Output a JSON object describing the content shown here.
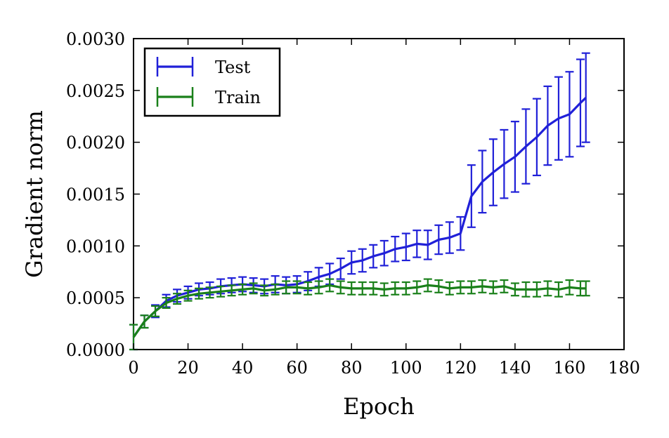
{
  "chart_data": {
    "type": "line",
    "xlabel": "Epoch",
    "ylabel": "Gradient norm",
    "xlim": [
      0,
      180
    ],
    "ylim": [
      0,
      0.003
    ],
    "xticks": [
      0,
      20,
      40,
      60,
      80,
      100,
      120,
      140,
      160,
      180
    ],
    "xtick_labels": [
      "0",
      "20",
      "40",
      "60",
      "80",
      "100",
      "120",
      "140",
      "160",
      "180"
    ],
    "yticks": [
      0,
      0.0005,
      0.001,
      0.0015,
      0.002,
      0.0025,
      0.003
    ],
    "ytick_labels": [
      "0.0000",
      "0.0005",
      "0.0010",
      "0.0015",
      "0.0020",
      "0.0025",
      "0.0030"
    ],
    "grid": false,
    "legend_position": "top-left",
    "x": [
      0,
      4,
      8,
      12,
      16,
      20,
      24,
      28,
      32,
      36,
      40,
      44,
      48,
      52,
      56,
      60,
      64,
      68,
      72,
      76,
      80,
      84,
      88,
      92,
      96,
      100,
      104,
      108,
      112,
      116,
      120,
      124,
      128,
      132,
      136,
      140,
      144,
      148,
      152,
      156,
      160,
      164,
      166
    ],
    "series": [
      {
        "name": "Test",
        "color": "#2020d8",
        "values": [
          0.00012,
          0.00027,
          0.00037,
          0.00047,
          0.00052,
          0.00055,
          0.00058,
          0.00059,
          0.00061,
          0.00062,
          0.00063,
          0.00062,
          0.00061,
          0.00063,
          0.00062,
          0.00063,
          0.00066,
          0.0007,
          0.00073,
          0.00078,
          0.00084,
          0.00086,
          0.0009,
          0.00093,
          0.00097,
          0.00099,
          0.00102,
          0.00101,
          0.00106,
          0.00108,
          0.00112,
          0.00148,
          0.00162,
          0.00171,
          0.00179,
          0.00186,
          0.00196,
          0.00205,
          0.00216,
          0.00223,
          0.00227,
          0.00238,
          0.00243
        ],
        "errors": [
          0.00012,
          6e-05,
          6e-05,
          6e-05,
          6e-05,
          6e-05,
          6e-05,
          6e-05,
          7e-05,
          7e-05,
          7e-05,
          7e-05,
          7e-05,
          8e-05,
          8e-05,
          8e-05,
          9e-05,
          9e-05,
          0.0001,
          0.0001,
          0.00011,
          0.00011,
          0.00011,
          0.00012,
          0.00012,
          0.00013,
          0.00013,
          0.00014,
          0.00014,
          0.00015,
          0.00016,
          0.0003,
          0.0003,
          0.00032,
          0.00033,
          0.00034,
          0.00036,
          0.00037,
          0.00038,
          0.0004,
          0.00041,
          0.00042,
          0.00043
        ]
      },
      {
        "name": "Train",
        "color": "#1a801a",
        "values": [
          0.00012,
          0.00027,
          0.00037,
          0.00045,
          0.00049,
          0.00052,
          0.00054,
          0.00055,
          0.00056,
          0.00057,
          0.00058,
          0.00059,
          0.00057,
          0.00058,
          0.0006,
          0.0006,
          0.00059,
          0.0006,
          0.00062,
          0.0006,
          0.00059,
          0.00059,
          0.00059,
          0.00058,
          0.00059,
          0.00059,
          0.0006,
          0.00062,
          0.00061,
          0.00059,
          0.0006,
          0.0006,
          0.00061,
          0.0006,
          0.00061,
          0.00058,
          0.00058,
          0.00058,
          0.00059,
          0.00058,
          0.0006,
          0.00059,
          0.00059
        ],
        "errors": [
          0.00012,
          6e-05,
          5e-05,
          5e-05,
          5e-05,
          5e-05,
          5e-05,
          5e-05,
          5e-05,
          5e-05,
          5e-05,
          5e-05,
          5e-05,
          5e-05,
          6e-05,
          6e-05,
          6e-05,
          6e-05,
          6e-05,
          6e-05,
          6e-05,
          6e-05,
          6e-05,
          6e-05,
          6e-05,
          6e-05,
          6e-05,
          6e-05,
          6e-05,
          6e-05,
          6e-05,
          6e-05,
          6e-05,
          6e-05,
          6e-05,
          6e-05,
          7e-05,
          7e-05,
          7e-05,
          7e-05,
          7e-05,
          7e-05,
          7e-05
        ]
      }
    ]
  }
}
